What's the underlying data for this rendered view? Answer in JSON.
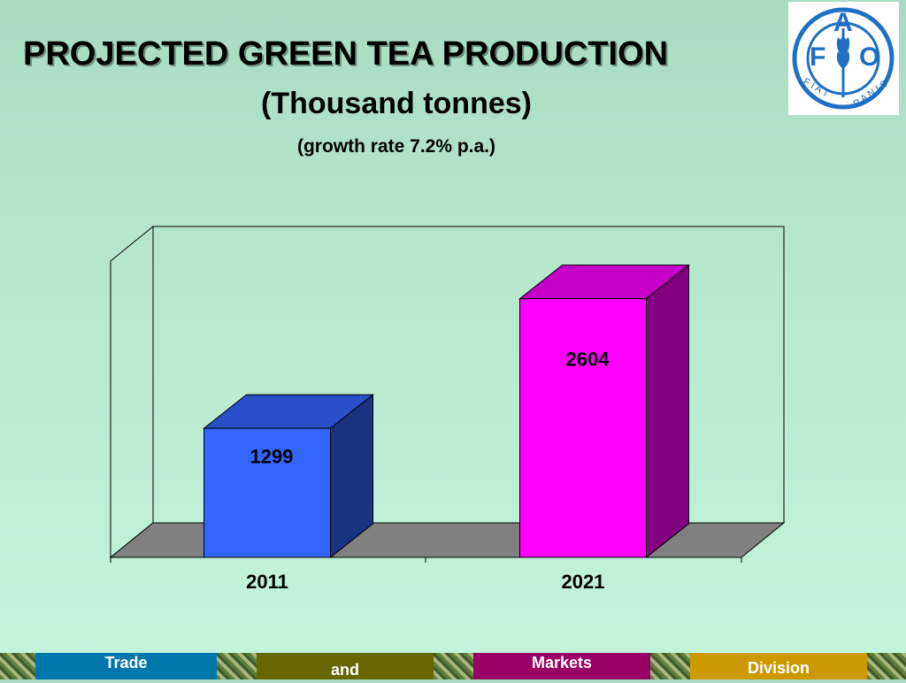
{
  "header": {
    "title": "PROJECTED GREEN TEA PRODUCTION",
    "subtitle": "(Thousand tonnes)",
    "note": "(growth rate 7.2% p.a.)"
  },
  "logo": {
    "letters": [
      "F",
      "A",
      "O"
    ],
    "motto_left": "F I A T",
    "motto_right": "P A N I S",
    "color": "#1f6fc4"
  },
  "chart_data": {
    "type": "bar",
    "categories": [
      "2011",
      "2021"
    ],
    "values": [
      1299,
      2604
    ],
    "data_labels": [
      "1299",
      "2604"
    ],
    "colors": [
      "#3366ff",
      "#ff00ff"
    ],
    "ylim": [
      0,
      3000
    ],
    "grid": false,
    "three_d": true
  },
  "footer": {
    "items": [
      "Trade",
      "and",
      "Markets",
      "Division"
    ],
    "colors": [
      "#0077aa",
      "#666600",
      "#990066",
      "#cc9900"
    ]
  }
}
